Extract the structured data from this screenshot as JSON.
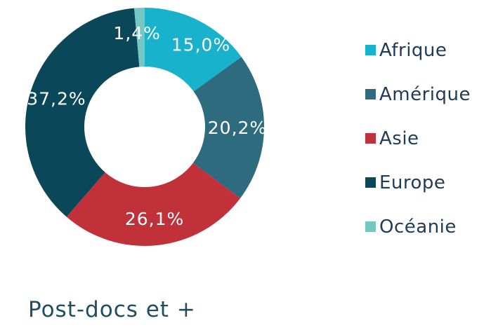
{
  "chart_data": {
    "type": "pie",
    "variant": "donut",
    "title": "Post-docs et +",
    "legend_position": "right",
    "categories": [
      "Afrique",
      "Amérique",
      "Asie",
      "Europe",
      "Océanie"
    ],
    "values": [
      15.0,
      20.2,
      26.1,
      37.2,
      1.4
    ],
    "value_labels": [
      "15,0%",
      "20,2%",
      "26,1%",
      "37,2%",
      "1,4%"
    ],
    "colors": [
      "#19b2cc",
      "#2e6b7e",
      "#c0313a",
      "#0a4758",
      "#74c7c2"
    ]
  }
}
